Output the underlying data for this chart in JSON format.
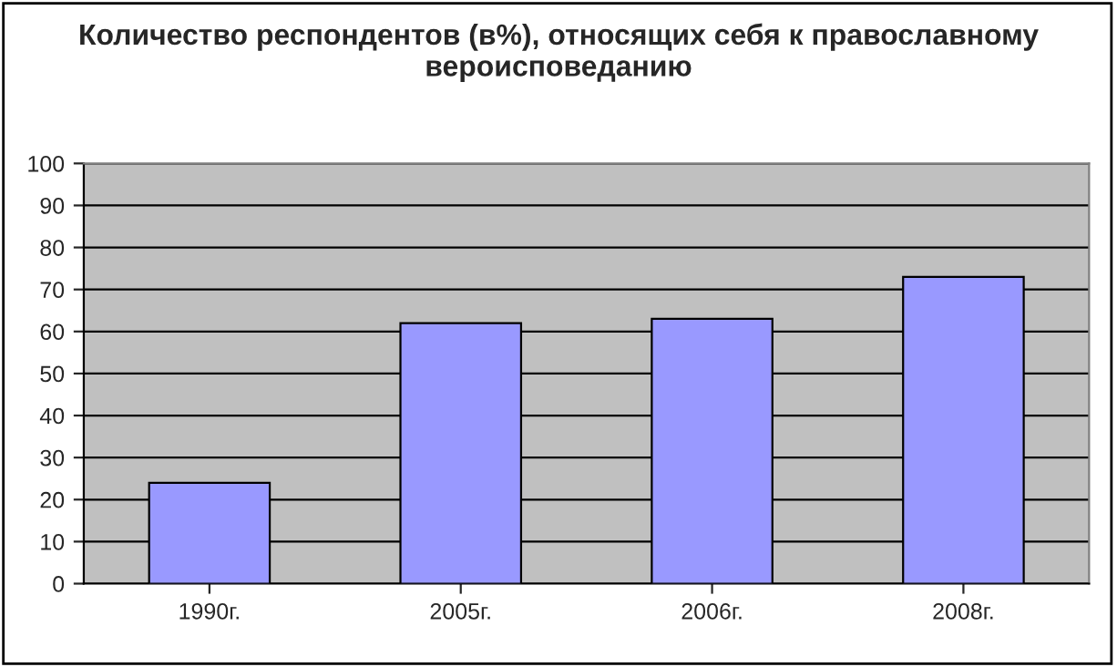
{
  "chart_data": {
    "type": "bar",
    "title": "Количество респондентов (в%), относящих себя к православному вероисповеданию",
    "categories": [
      "1990г.",
      "2005г.",
      "2006г.",
      "2008г."
    ],
    "values": [
      24,
      62,
      63,
      73
    ],
    "color": "#9999ff",
    "ylim": [
      0,
      100
    ],
    "yticks": [
      0,
      10,
      20,
      30,
      40,
      50,
      60,
      70,
      80,
      90,
      100
    ],
    "grid": "y",
    "legend": false
  }
}
